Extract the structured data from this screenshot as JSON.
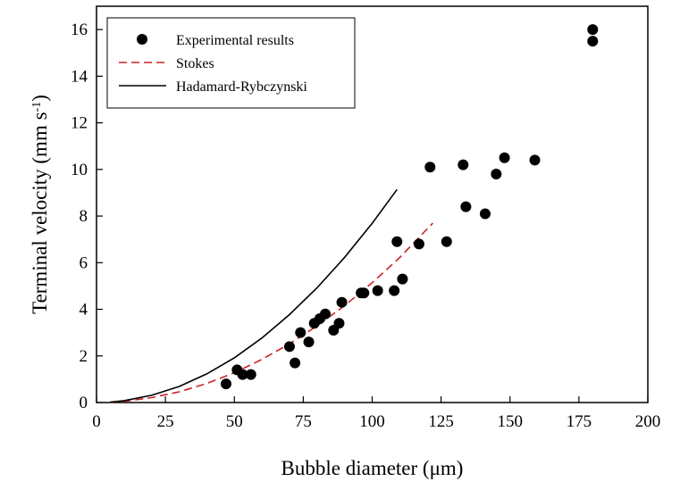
{
  "chart_data": {
    "type": "scatter",
    "title": "",
    "xlabel": "Bubble diameter (μm)",
    "ylabel_main": "Terminal velocity (mm s",
    "ylabel_sup": "-1",
    "ylabel_close": ")",
    "xlim": [
      0,
      200
    ],
    "ylim": [
      0,
      17
    ],
    "xticks": [
      0,
      25,
      50,
      75,
      100,
      125,
      150,
      175,
      200
    ],
    "yticks": [
      0,
      2,
      4,
      6,
      8,
      10,
      12,
      14,
      16
    ],
    "grid": false,
    "legend_position": "top-left",
    "series": [
      {
        "name": "Experimental results",
        "kind": "scatter",
        "color": "#000000",
        "x": [
          47,
          51,
          53,
          56,
          70,
          72,
          74,
          77,
          79,
          81,
          83,
          86,
          88,
          89,
          96,
          97,
          102,
          108,
          109,
          111,
          117,
          121,
          127,
          133,
          134,
          141,
          145,
          148,
          159,
          180,
          180
        ],
        "y": [
          0.8,
          1.4,
          1.2,
          1.2,
          2.4,
          1.7,
          3.0,
          2.6,
          3.4,
          3.6,
          3.8,
          3.1,
          3.4,
          4.3,
          4.7,
          4.7,
          4.8,
          4.8,
          6.9,
          5.3,
          6.8,
          10.1,
          6.9,
          10.2,
          8.4,
          8.1,
          9.8,
          10.5,
          10.4,
          15.5,
          16.0
        ]
      },
      {
        "name": "Stokes",
        "kind": "line",
        "style": "dashed",
        "color": "#cc2222",
        "x": [
          5,
          10,
          20,
          30,
          40,
          50,
          60,
          70,
          80,
          90,
          100,
          110,
          122
        ],
        "y": [
          0.01,
          0.05,
          0.21,
          0.46,
          0.82,
          1.28,
          1.85,
          2.52,
          3.29,
          4.16,
          5.14,
          6.22,
          7.7
        ]
      },
      {
        "name": "Hadamard-Rybczynski",
        "kind": "line",
        "style": "solid",
        "color": "#000000",
        "x": [
          5,
          10,
          20,
          30,
          40,
          50,
          60,
          70,
          80,
          90,
          100,
          109
        ],
        "y": [
          0.02,
          0.08,
          0.31,
          0.69,
          1.23,
          1.92,
          2.77,
          3.77,
          4.92,
          6.23,
          7.69,
          9.14
        ]
      }
    ]
  }
}
